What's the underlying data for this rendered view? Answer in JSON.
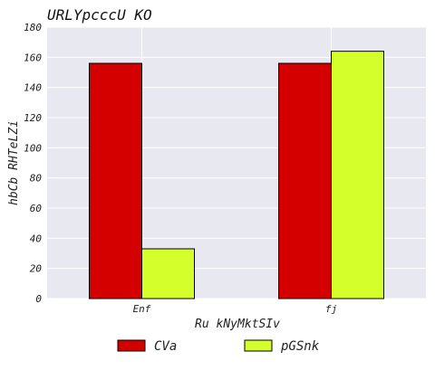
{
  "chart_data": {
    "type": "bar",
    "title": "URLYpcccU KO",
    "xlabel": "Ru kNyMktSIv",
    "ylabel": "hbCb RHTeLZi",
    "categories": [
      "Enf",
      "fj"
    ],
    "series": [
      {
        "name": "CVa",
        "values": [
          156,
          156
        ],
        "color": "#d40000"
      },
      {
        "name": "pGSnk",
        "values": [
          33,
          164
        ],
        "color": "#d4ff2a"
      }
    ],
    "ylim": [
      0,
      180
    ],
    "yticks": [
      0,
      20,
      40,
      60,
      80,
      100,
      120,
      140,
      160,
      180
    ],
    "grid": true,
    "legend_position": "bottom",
    "plot_background": "#e8e8f0",
    "grid_color": "#ffffff"
  }
}
